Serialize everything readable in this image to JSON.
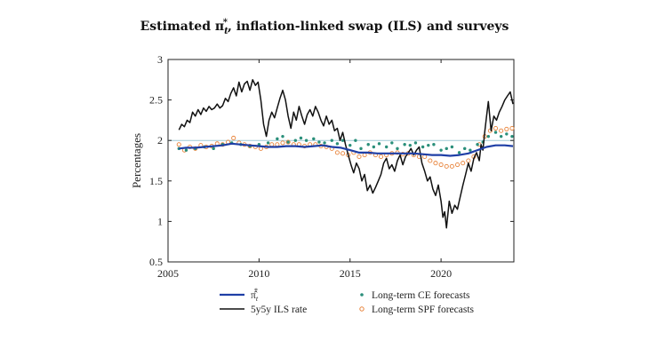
{
  "chart_data": {
    "type": "line",
    "title_prefix": "Estimated ",
    "title_symbol": "π",
    "title_sub": "t",
    "title_sup": "*",
    "title_suffix": ", inflation-linked swap (ILS) and surveys",
    "xlabel": "",
    "ylabel": "Percentages",
    "xlim": [
      2005,
      2024
    ],
    "ylim": [
      0.5,
      3
    ],
    "xticks": [
      2005,
      2010,
      2015,
      2020
    ],
    "xtick_labels": [
      "2005",
      "2010",
      "2015",
      "2020"
    ],
    "yticks": [
      0.5,
      1,
      1.5,
      2,
      2.5,
      3
    ],
    "ytick_labels": [
      "0.5",
      "1",
      "1.5",
      "2",
      "2.5",
      "3"
    ],
    "reference_line_y": 2,
    "colors": {
      "pi_star": "#1f3fa6",
      "ils": "#111111",
      "ce": "#2a8f7a",
      "spf": "#e8833a",
      "ref": "#9fc9d6"
    },
    "legend": {
      "pi_star_symbol": "π̂",
      "pi_star_sub": "t",
      "pi_star_sup": "*",
      "ils": "5y5y ILS rate",
      "ce": "Long-term CE forecasts",
      "spf": "Long-term SPF forecasts"
    },
    "series": [
      {
        "name": "5y5y ILS rate",
        "x": [
          2005.6,
          2005.75,
          2005.9,
          2006.05,
          2006.2,
          2006.35,
          2006.5,
          2006.65,
          2006.8,
          2006.95,
          2007.1,
          2007.25,
          2007.4,
          2007.55,
          2007.7,
          2007.85,
          2008.0,
          2008.15,
          2008.3,
          2008.45,
          2008.6,
          2008.75,
          2008.9,
          2009.05,
          2009.2,
          2009.35,
          2009.5,
          2009.65,
          2009.8,
          2009.95,
          2010.1,
          2010.25,
          2010.4,
          2010.55,
          2010.7,
          2010.85,
          2011.0,
          2011.15,
          2011.3,
          2011.45,
          2011.6,
          2011.75,
          2011.9,
          2012.05,
          2012.2,
          2012.35,
          2012.5,
          2012.65,
          2012.8,
          2012.95,
          2013.1,
          2013.25,
          2013.4,
          2013.55,
          2013.7,
          2013.85,
          2014.0,
          2014.15,
          2014.3,
          2014.45,
          2014.6,
          2014.75,
          2014.9,
          2015.05,
          2015.2,
          2015.35,
          2015.5,
          2015.65,
          2015.8,
          2015.95,
          2016.1,
          2016.25,
          2016.4,
          2016.55,
          2016.7,
          2016.85,
          2017.0,
          2017.15,
          2017.3,
          2017.45,
          2017.6,
          2017.75,
          2017.9,
          2018.05,
          2018.2,
          2018.35,
          2018.5,
          2018.65,
          2018.8,
          2018.95,
          2019.1,
          2019.25,
          2019.4,
          2019.55,
          2019.7,
          2019.85,
          2020.0,
          2020.1,
          2020.2,
          2020.3,
          2020.45,
          2020.6,
          2020.75,
          2020.9,
          2021.05,
          2021.2,
          2021.35,
          2021.5,
          2021.65,
          2021.8,
          2021.95,
          2022.1,
          2022.2,
          2022.3,
          2022.4,
          2022.5,
          2022.6,
          2022.75,
          2022.9,
          2023.05,
          2023.2,
          2023.35,
          2023.5,
          2023.65,
          2023.8,
          2023.95
        ],
        "y": [
          2.13,
          2.2,
          2.17,
          2.25,
          2.22,
          2.35,
          2.3,
          2.38,
          2.32,
          2.4,
          2.36,
          2.42,
          2.38,
          2.4,
          2.45,
          2.4,
          2.43,
          2.52,
          2.48,
          2.58,
          2.65,
          2.55,
          2.72,
          2.6,
          2.7,
          2.73,
          2.62,
          2.75,
          2.68,
          2.72,
          2.5,
          2.2,
          2.05,
          2.25,
          2.35,
          2.28,
          2.4,
          2.52,
          2.62,
          2.5,
          2.3,
          2.15,
          2.35,
          2.25,
          2.42,
          2.3,
          2.2,
          2.32,
          2.38,
          2.3,
          2.42,
          2.35,
          2.25,
          2.18,
          2.3,
          2.2,
          2.25,
          2.12,
          2.15,
          2.0,
          2.1,
          1.95,
          1.82,
          1.7,
          1.6,
          1.72,
          1.65,
          1.5,
          1.58,
          1.38,
          1.45,
          1.35,
          1.42,
          1.5,
          1.58,
          1.72,
          1.78,
          1.65,
          1.7,
          1.62,
          1.75,
          1.82,
          1.7,
          1.8,
          1.85,
          1.9,
          1.82,
          1.88,
          1.92,
          1.72,
          1.62,
          1.5,
          1.55,
          1.4,
          1.32,
          1.45,
          1.25,
          1.05,
          1.12,
          0.92,
          1.25,
          1.1,
          1.2,
          1.15,
          1.3,
          1.45,
          1.58,
          1.72,
          1.62,
          1.78,
          1.85,
          1.75,
          1.95,
          1.88,
          2.1,
          2.3,
          2.48,
          2.12,
          2.3,
          2.25,
          2.35,
          2.42,
          2.5,
          2.55,
          2.6,
          2.45
        ]
      },
      {
        "name": "π̂*",
        "x": [
          2005.6,
          2006,
          2006.5,
          2007,
          2007.5,
          2008,
          2008.5,
          2009,
          2009.5,
          2010,
          2010.5,
          2011,
          2011.5,
          2012,
          2012.5,
          2013,
          2013.5,
          2014,
          2014.5,
          2015,
          2015.5,
          2016,
          2016.5,
          2017,
          2017.5,
          2018,
          2018.5,
          2019,
          2019.5,
          2020,
          2020.5,
          2021,
          2021.5,
          2022,
          2022.5,
          2023,
          2023.5,
          2023.95
        ],
        "y": [
          1.9,
          1.91,
          1.91,
          1.92,
          1.93,
          1.94,
          1.96,
          1.95,
          1.94,
          1.93,
          1.92,
          1.92,
          1.93,
          1.93,
          1.92,
          1.93,
          1.94,
          1.92,
          1.91,
          1.88,
          1.85,
          1.85,
          1.84,
          1.84,
          1.84,
          1.84,
          1.84,
          1.83,
          1.82,
          1.82,
          1.81,
          1.82,
          1.84,
          1.88,
          1.92,
          1.94,
          1.94,
          1.93
        ]
      },
      {
        "name": "Long-term CE forecasts",
        "x": [
          2005.6,
          2006,
          2006.5,
          2007,
          2007.5,
          2008,
          2008.5,
          2009,
          2009.5,
          2010,
          2010.5,
          2011,
          2011.3,
          2011.6,
          2012,
          2012.3,
          2012.6,
          2013,
          2013.3,
          2013.6,
          2014,
          2014.3,
          2014.6,
          2015,
          2015.3,
          2015.6,
          2016,
          2016.3,
          2016.6,
          2017,
          2017.3,
          2017.6,
          2018,
          2018.3,
          2018.6,
          2019,
          2019.3,
          2019.6,
          2020,
          2020.3,
          2020.6,
          2021,
          2021.3,
          2021.6,
          2022,
          2022.3,
          2022.6,
          2023,
          2023.3,
          2023.6,
          2023.9
        ],
        "y": [
          1.9,
          1.88,
          1.9,
          1.92,
          1.9,
          1.95,
          1.97,
          1.95,
          1.93,
          1.95,
          1.97,
          2.02,
          2.05,
          1.98,
          2.0,
          2.03,
          2.0,
          2.02,
          1.98,
          1.97,
          2.0,
          1.96,
          2.0,
          1.94,
          2.0,
          1.9,
          1.95,
          1.92,
          1.96,
          1.92,
          1.97,
          1.9,
          1.95,
          1.94,
          1.97,
          1.92,
          1.94,
          1.95,
          1.88,
          1.9,
          1.92,
          1.85,
          1.9,
          1.88,
          1.95,
          1.98,
          2.05,
          2.1,
          2.05,
          2.08,
          2.05
        ]
      },
      {
        "name": "Long-term SPF forecasts",
        "x": [
          2005.6,
          2005.9,
          2006.2,
          2006.5,
          2006.8,
          2007.1,
          2007.4,
          2007.7,
          2008.0,
          2008.3,
          2008.6,
          2008.9,
          2009.2,
          2009.5,
          2009.8,
          2010.1,
          2010.4,
          2010.7,
          2011.0,
          2011.3,
          2011.6,
          2011.9,
          2012.2,
          2012.5,
          2012.8,
          2013.1,
          2013.4,
          2013.7,
          2014.0,
          2014.3,
          2014.6,
          2014.9,
          2015.2,
          2015.5,
          2015.8,
          2016.1,
          2016.4,
          2016.7,
          2017.0,
          2017.3,
          2017.6,
          2017.9,
          2018.2,
          2018.5,
          2018.8,
          2019.1,
          2019.4,
          2019.7,
          2020.0,
          2020.3,
          2020.6,
          2020.9,
          2021.2,
          2021.5,
          2021.8,
          2022.1,
          2022.4,
          2022.7,
          2023.0,
          2023.3,
          2023.6,
          2023.9
        ],
        "y": [
          1.95,
          1.88,
          1.92,
          1.9,
          1.94,
          1.92,
          1.93,
          1.96,
          1.95,
          1.98,
          2.03,
          1.97,
          1.95,
          1.93,
          1.92,
          1.9,
          1.92,
          1.95,
          1.95,
          1.97,
          1.98,
          1.95,
          1.95,
          1.93,
          1.95,
          1.95,
          1.93,
          1.92,
          1.9,
          1.85,
          1.84,
          1.82,
          1.85,
          1.8,
          1.82,
          1.85,
          1.82,
          1.8,
          1.82,
          1.84,
          1.85,
          1.83,
          1.84,
          1.82,
          1.8,
          1.8,
          1.75,
          1.72,
          1.7,
          1.68,
          1.68,
          1.7,
          1.72,
          1.75,
          1.8,
          1.95,
          2.05,
          2.12,
          2.15,
          2.12,
          2.14,
          2.15
        ]
      }
    ]
  }
}
